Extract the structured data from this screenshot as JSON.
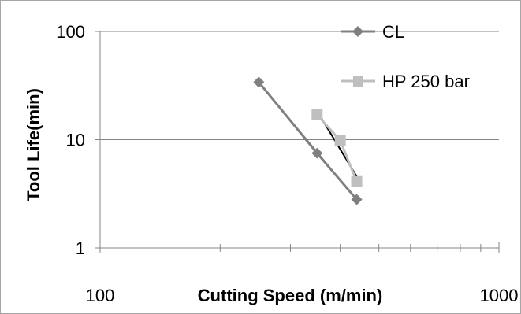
{
  "chart_data": {
    "type": "scatter",
    "title": "",
    "xlabel": "Cutting Speed (m/min)",
    "ylabel": "Tool Life(min)",
    "xscale": "log",
    "yscale": "log",
    "xlim": [
      100,
      1000
    ],
    "ylim": [
      1,
      100
    ],
    "x_tick_labels": [
      "100",
      "1000"
    ],
    "y_tick_labels": [
      "1",
      "10",
      "100"
    ],
    "grid": "horizontal major",
    "legend_position": "top-right",
    "series": [
      {
        "name": "CL",
        "color": "#808080",
        "marker": "diamond",
        "trendline": true,
        "points": [
          {
            "x": 250,
            "y": 34
          },
          {
            "x": 350,
            "y": 7.5
          },
          {
            "x": 440,
            "y": 2.8
          }
        ]
      },
      {
        "name": "HP 250 bar",
        "color": "#bfbfbf",
        "marker": "square",
        "trendline": true,
        "points": [
          {
            "x": 350,
            "y": 17
          },
          {
            "x": 400,
            "y": 9.8
          },
          {
            "x": 440,
            "y": 4.1
          }
        ]
      }
    ]
  }
}
